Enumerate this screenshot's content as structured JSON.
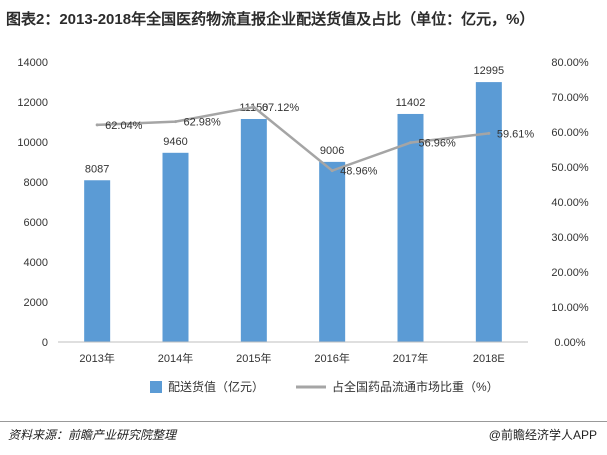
{
  "title": "图表2：2013-2018年全国医药物流直报企业配送货值及占比（单位：亿元，%）",
  "footer": {
    "source": "资料来源：前瞻产业研究院整理",
    "brand": "@前瞻经济学人APP"
  },
  "chart_data": {
    "type": "bar",
    "categories": [
      "2013年",
      "2014年",
      "2015年",
      "2016年",
      "2017年",
      "2018E"
    ],
    "series": [
      {
        "name": "配送货值（亿元）",
        "type": "bar",
        "axis": "left",
        "values": [
          8087,
          9460,
          11150,
          9006,
          11402,
          12995
        ],
        "labels": [
          "8087",
          "9460",
          "11150",
          "9006",
          "11402",
          "12995"
        ],
        "color": "#5b9bd5"
      },
      {
        "name": "占全国药品流通市场比重（%）",
        "type": "line",
        "axis": "right",
        "values": [
          62.04,
          62.98,
          67.12,
          48.96,
          56.96,
          59.61
        ],
        "labels": [
          "62.04%",
          "62.98%",
          "67.12%",
          "48.96%",
          "56.96%",
          "59.61%"
        ],
        "color": "#a5a5a5"
      }
    ],
    "y_left": {
      "min": 0,
      "max": 14000,
      "ticks": [
        "0",
        "2000",
        "4000",
        "6000",
        "8000",
        "10000",
        "12000",
        "14000"
      ]
    },
    "y_right": {
      "min": 0,
      "max": 80,
      "ticks": [
        "0.00%",
        "10.00%",
        "20.00%",
        "30.00%",
        "40.00%",
        "50.00%",
        "60.00%",
        "70.00%",
        "80.00%"
      ]
    },
    "grid": false,
    "legend_position": "bottom"
  }
}
